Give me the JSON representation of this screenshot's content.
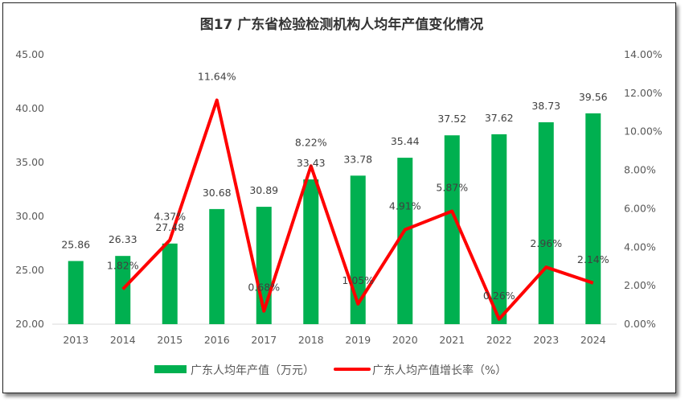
{
  "chart_data": {
    "type": "bar+line",
    "title": "图17  广东省检验检测机构人均年产值变化情况",
    "categories": [
      "2013",
      "2014",
      "2015",
      "2016",
      "2017",
      "2018",
      "2019",
      "2020",
      "2021",
      "2022",
      "2023",
      "2024"
    ],
    "series": [
      {
        "name": "广东人均年产值（万元）",
        "type": "bar",
        "axis": "left",
        "color": "#00B050",
        "values": [
          25.86,
          26.33,
          27.48,
          30.68,
          30.89,
          33.43,
          33.78,
          35.44,
          37.52,
          37.62,
          38.73,
          39.56
        ],
        "labels": [
          "25.86",
          "26.33",
          "27.48",
          "30.68",
          "30.89",
          "33.43",
          "33.78",
          "35.44",
          "37.52",
          "37.62",
          "38.73",
          "39.56"
        ]
      },
      {
        "name": "广东人均产值增长率（%）",
        "type": "line",
        "axis": "right",
        "color": "#FF0000",
        "values": [
          null,
          1.82,
          4.37,
          11.64,
          0.68,
          8.22,
          1.05,
          4.91,
          5.87,
          0.26,
          2.96,
          2.14
        ],
        "labels": [
          "",
          "1.82%",
          "4.37%",
          "11.64%",
          "0.68%",
          "8.22%",
          "1.05%",
          "4.91%",
          "5.87%",
          "0.26%",
          "2.96%",
          "2.14%"
        ]
      }
    ],
    "y_left": {
      "range": [
        20,
        45
      ],
      "ticks": [
        "20.00",
        "25.00",
        "30.00",
        "35.00",
        "40.00",
        "45.00"
      ]
    },
    "y_right": {
      "range": [
        0,
        14
      ],
      "ticks": [
        "0.00%",
        "2.00%",
        "4.00%",
        "6.00%",
        "8.00%",
        "10.00%",
        "12.00%",
        "14.00%"
      ]
    },
    "grid": false,
    "legend_position": "bottom"
  }
}
